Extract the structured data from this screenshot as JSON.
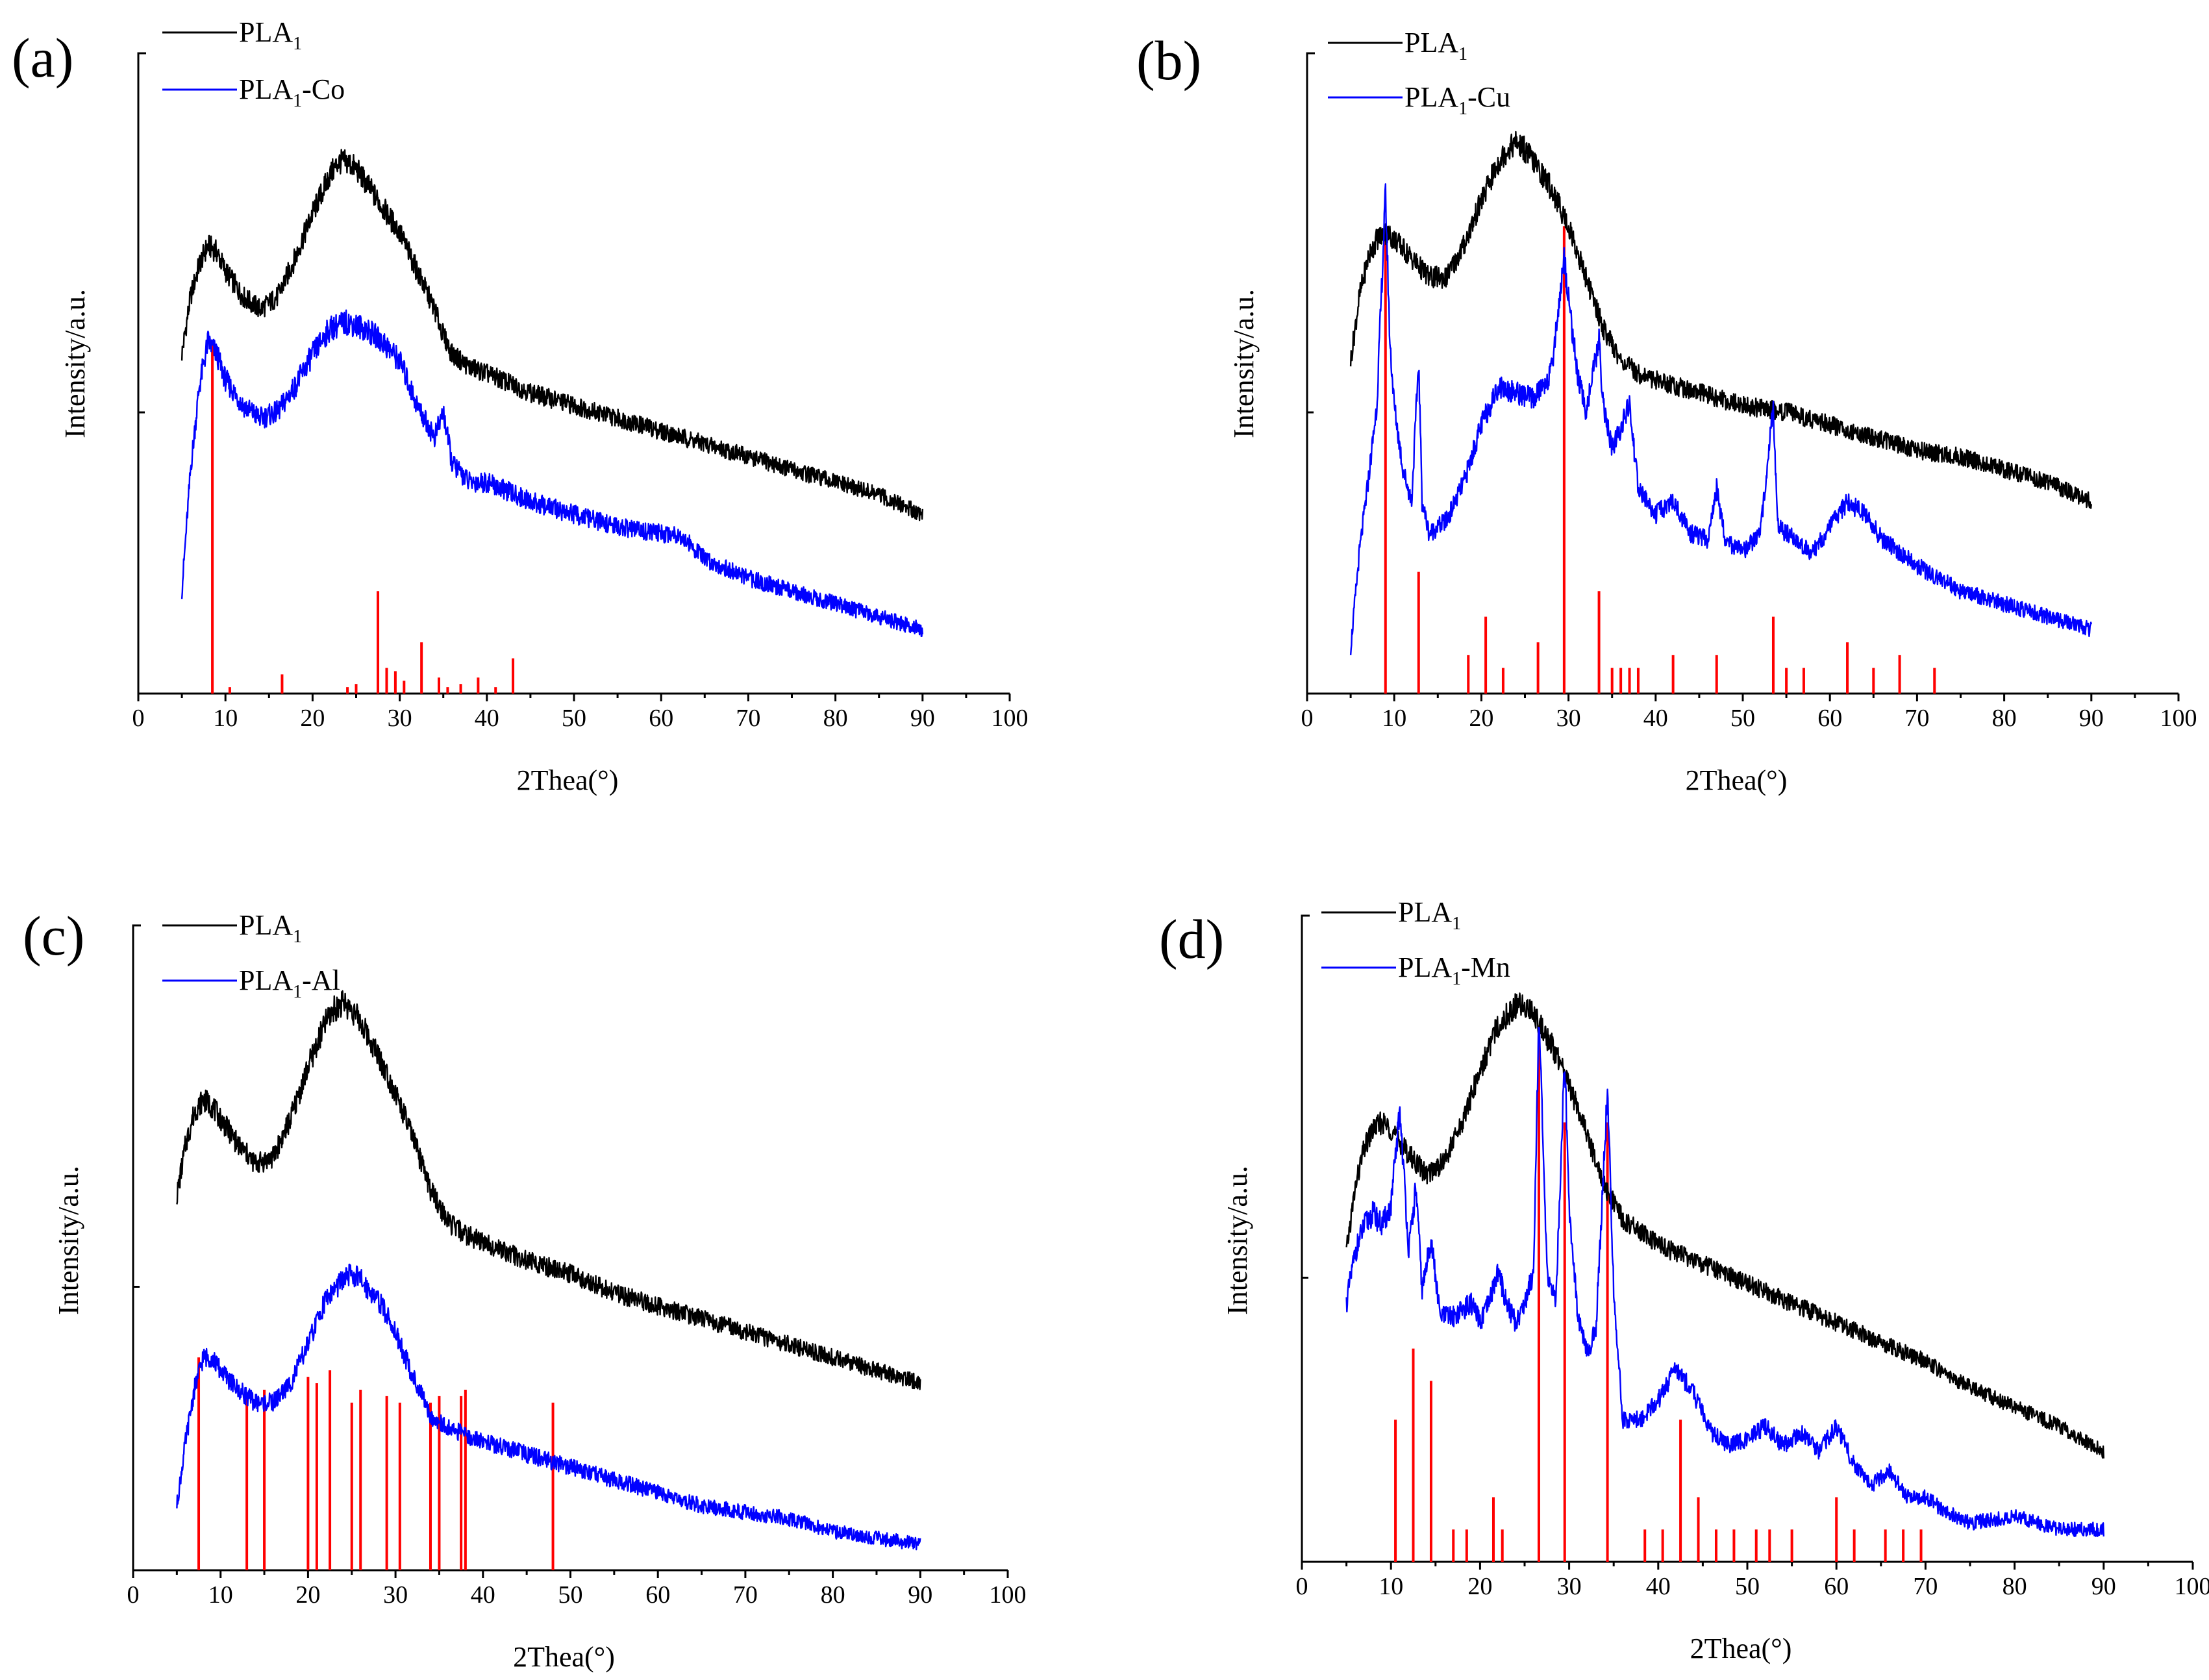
{
  "colors": {
    "pla1": "#000000",
    "composite": "#0000ff",
    "reference": "#ff0000"
  },
  "chart_data": [
    {
      "type": "line",
      "panel_label": "(a)",
      "xlabel": "2Thea(°)",
      "ylabel": "Intensity/a.u.",
      "xlim": [
        0,
        100
      ],
      "xticks": [
        0,
        10,
        20,
        30,
        40,
        50,
        60,
        70,
        80,
        90,
        100
      ],
      "legend": {
        "base": "PLA",
        "sub": "1",
        "composite_suffix": "-Co",
        "placement": "top-left"
      },
      "series": [
        {
          "name": "PLA1",
          "x": [
            5,
            6,
            7,
            8,
            9,
            10,
            12,
            14,
            16,
            18,
            20,
            22,
            23,
            24,
            25,
            26,
            28,
            30,
            32,
            34,
            35,
            36,
            38,
            40,
            45,
            50,
            55,
            60,
            65,
            70,
            75,
            80,
            85,
            90
          ],
          "y": [
            0.53,
            0.62,
            0.67,
            0.7,
            0.69,
            0.66,
            0.62,
            0.6,
            0.62,
            0.68,
            0.75,
            0.81,
            0.83,
            0.83,
            0.82,
            0.8,
            0.76,
            0.72,
            0.66,
            0.6,
            0.56,
            0.53,
            0.51,
            0.5,
            0.47,
            0.45,
            0.43,
            0.41,
            0.39,
            0.37,
            0.35,
            0.33,
            0.31,
            0.28
          ]
        },
        {
          "name": "PLA1-Co",
          "x": [
            5,
            6,
            7,
            8,
            9,
            10,
            12,
            14,
            16,
            18,
            20,
            22,
            24,
            26,
            28,
            30,
            32,
            34,
            35,
            36,
            38,
            40,
            45,
            50,
            55,
            60,
            62,
            65,
            70,
            75,
            80,
            85,
            90
          ],
          "y": [
            0.16,
            0.35,
            0.48,
            0.55,
            0.53,
            0.49,
            0.45,
            0.43,
            0.44,
            0.48,
            0.53,
            0.57,
            0.58,
            0.57,
            0.55,
            0.52,
            0.45,
            0.4,
            0.44,
            0.36,
            0.33,
            0.33,
            0.3,
            0.28,
            0.26,
            0.25,
            0.25,
            0.21,
            0.18,
            0.16,
            0.14,
            0.12,
            0.1
          ]
        }
      ],
      "reference_lines": {
        "x": [
          8.5,
          10.5,
          16.5,
          24.0,
          25.0,
          27.5,
          28.5,
          29.5,
          30.5,
          32.5,
          34.5,
          35.5,
          37.0,
          39.0,
          41.0,
          43.0
        ],
        "h": [
          0.55,
          0.01,
          0.03,
          0.01,
          0.015,
          0.16,
          0.04,
          0.035,
          0.02,
          0.08,
          0.025,
          0.01,
          0.015,
          0.025,
          0.01,
          0.055
        ]
      }
    },
    {
      "type": "line",
      "panel_label": "(b)",
      "xlabel": "2Thea(°)",
      "ylabel": "Intensity/a.u.",
      "xlim": [
        0,
        100
      ],
      "xticks": [
        0,
        10,
        20,
        30,
        40,
        50,
        60,
        70,
        80,
        90,
        100
      ],
      "legend": {
        "base": "PLA",
        "sub": "1",
        "composite_suffix": "-Cu",
        "placement": "top-left"
      },
      "series": [
        {
          "name": "PLA1",
          "x": [
            5,
            6,
            7,
            8,
            9,
            10,
            12,
            14,
            16,
            18,
            20,
            22,
            23,
            24,
            25,
            26,
            28,
            30,
            32,
            34,
            36,
            38,
            40,
            45,
            50,
            55,
            60,
            65,
            70,
            75,
            80,
            85,
            90
          ],
          "y": [
            0.52,
            0.62,
            0.68,
            0.71,
            0.72,
            0.71,
            0.68,
            0.65,
            0.65,
            0.7,
            0.77,
            0.83,
            0.85,
            0.86,
            0.85,
            0.83,
            0.79,
            0.73,
            0.65,
            0.57,
            0.52,
            0.5,
            0.49,
            0.47,
            0.45,
            0.44,
            0.42,
            0.4,
            0.38,
            0.37,
            0.35,
            0.33,
            0.3
          ]
        },
        {
          "name": "PLA1-Cu",
          "x": [
            5,
            6,
            7,
            8,
            9,
            9.5,
            10,
            11,
            12,
            12.8,
            13.2,
            14,
            16,
            18,
            20,
            22,
            24,
            26,
            28,
            29.5,
            30,
            31,
            32,
            33.5,
            34,
            35,
            37,
            38,
            40,
            42,
            44,
            46,
            47,
            48,
            50,
            52,
            53.5,
            54,
            56,
            58,
            60,
            62,
            64,
            66,
            68,
            70,
            75,
            80,
            85,
            90
          ],
          "y": [
            0.07,
            0.22,
            0.33,
            0.45,
            0.78,
            0.55,
            0.45,
            0.35,
            0.3,
            0.52,
            0.3,
            0.25,
            0.27,
            0.33,
            0.42,
            0.48,
            0.47,
            0.46,
            0.5,
            0.68,
            0.62,
            0.5,
            0.44,
            0.55,
            0.45,
            0.38,
            0.45,
            0.32,
            0.28,
            0.3,
            0.25,
            0.24,
            0.32,
            0.24,
            0.22,
            0.25,
            0.45,
            0.26,
            0.24,
            0.22,
            0.26,
            0.3,
            0.28,
            0.24,
            0.22,
            0.2,
            0.16,
            0.14,
            0.12,
            0.1
          ]
        }
      ],
      "reference_lines": {
        "x": [
          9.0,
          12.8,
          18.5,
          20.5,
          22.5,
          26.5,
          29.5,
          33.5,
          35.0,
          36.0,
          37.0,
          38.0,
          42.0,
          47.0,
          53.5,
          55.0,
          57.0,
          62.0,
          65.0,
          68.0,
          72.0
        ],
        "h": [
          0.73,
          0.19,
          0.06,
          0.12,
          0.04,
          0.08,
          0.73,
          0.16,
          0.04,
          0.04,
          0.04,
          0.04,
          0.06,
          0.06,
          0.12,
          0.04,
          0.04,
          0.08,
          0.04,
          0.06,
          0.04
        ]
      }
    },
    {
      "type": "line",
      "panel_label": "(c)",
      "xlabel": "2Thea(°)",
      "ylabel": "Intensity/a.u.",
      "xlim": [
        0,
        100
      ],
      "xticks": [
        0,
        10,
        20,
        30,
        40,
        50,
        60,
        70,
        80,
        90,
        100
      ],
      "legend": {
        "base": "PLA",
        "sub": "1",
        "composite_suffix": "-Al",
        "placement": "top-left"
      },
      "series": [
        {
          "name": "PLA1",
          "x": [
            5,
            6,
            7,
            8,
            9,
            10,
            12,
            14,
            16,
            18,
            20,
            22,
            23,
            24,
            25,
            26,
            28,
            30,
            32,
            34,
            36,
            38,
            40,
            45,
            50,
            55,
            60,
            65,
            70,
            75,
            80,
            85,
            90
          ],
          "y": [
            0.58,
            0.66,
            0.71,
            0.73,
            0.72,
            0.7,
            0.66,
            0.63,
            0.64,
            0.7,
            0.78,
            0.85,
            0.87,
            0.88,
            0.87,
            0.85,
            0.8,
            0.74,
            0.67,
            0.59,
            0.54,
            0.52,
            0.51,
            0.48,
            0.46,
            0.43,
            0.41,
            0.39,
            0.37,
            0.35,
            0.33,
            0.31,
            0.29
          ]
        },
        {
          "name": "PLA1-Al",
          "x": [
            5,
            6,
            7,
            8,
            9,
            10,
            12,
            14,
            16,
            18,
            20,
            22,
            24,
            25,
            26,
            28,
            30,
            32,
            34,
            36,
            38,
            40,
            45,
            50,
            55,
            60,
            65,
            70,
            75,
            80,
            85,
            90
          ],
          "y": [
            0.1,
            0.2,
            0.28,
            0.33,
            0.33,
            0.31,
            0.28,
            0.26,
            0.26,
            0.29,
            0.35,
            0.42,
            0.45,
            0.46,
            0.45,
            0.42,
            0.37,
            0.3,
            0.24,
            0.22,
            0.21,
            0.2,
            0.18,
            0.16,
            0.14,
            0.12,
            0.1,
            0.09,
            0.08,
            0.06,
            0.05,
            0.04
          ]
        }
      ],
      "reference_lines": {
        "x": [
          7.5,
          13.0,
          15.0,
          20.0,
          21.0,
          22.5,
          25.0,
          26.0,
          29.0,
          30.5,
          34.0,
          35.0,
          37.5,
          38.0,
          48.0
        ],
        "h": [
          0.33,
          0.27,
          0.28,
          0.3,
          0.29,
          0.31,
          0.26,
          0.28,
          0.27,
          0.26,
          0.26,
          0.27,
          0.27,
          0.28,
          0.26
        ]
      }
    },
    {
      "type": "line",
      "panel_label": "(d)",
      "xlabel": "2Thea(°)",
      "ylabel": "Intensity/a.u.",
      "xlim": [
        0,
        100
      ],
      "xticks": [
        0,
        10,
        20,
        30,
        40,
        50,
        60,
        70,
        80,
        90,
        100
      ],
      "legend": {
        "base": "PLA",
        "sub": "1",
        "composite_suffix": "-Mn",
        "placement": "top-left"
      },
      "series": [
        {
          "name": "PLA1",
          "x": [
            5,
            6,
            7,
            8,
            9,
            10,
            12,
            14,
            16,
            18,
            20,
            22,
            24,
            25,
            26,
            28,
            30,
            32,
            34,
            36,
            38,
            40,
            45,
            50,
            55,
            60,
            65,
            70,
            75,
            80,
            85,
            90
          ],
          "y": [
            0.48,
            0.58,
            0.64,
            0.67,
            0.68,
            0.67,
            0.63,
            0.6,
            0.62,
            0.68,
            0.76,
            0.83,
            0.86,
            0.86,
            0.85,
            0.8,
            0.74,
            0.66,
            0.58,
            0.53,
            0.51,
            0.49,
            0.46,
            0.43,
            0.4,
            0.37,
            0.34,
            0.31,
            0.27,
            0.24,
            0.21,
            0.17
          ]
        },
        {
          "name": "PLA1-Mn",
          "x": [
            5,
            6,
            7,
            8,
            9,
            10,
            11,
            12,
            12.8,
            13.5,
            14.5,
            15.5,
            17,
            19,
            20,
            21,
            22,
            23,
            24,
            25,
            26,
            26.6,
            27.5,
            28.5,
            29.5,
            30,
            31,
            32,
            33,
            34.3,
            35,
            36,
            38,
            40,
            42,
            44,
            46,
            48,
            50,
            52,
            54,
            56,
            58,
            60,
            62,
            64,
            66,
            68,
            70,
            72,
            75,
            80,
            85,
            90
          ],
          "y": [
            0.4,
            0.48,
            0.52,
            0.54,
            0.52,
            0.55,
            0.7,
            0.48,
            0.58,
            0.42,
            0.5,
            0.38,
            0.38,
            0.4,
            0.37,
            0.4,
            0.45,
            0.4,
            0.37,
            0.4,
            0.45,
            0.85,
            0.45,
            0.4,
            0.78,
            0.55,
            0.38,
            0.32,
            0.36,
            0.73,
            0.42,
            0.22,
            0.22,
            0.25,
            0.3,
            0.26,
            0.2,
            0.18,
            0.19,
            0.21,
            0.18,
            0.2,
            0.17,
            0.21,
            0.15,
            0.12,
            0.14,
            0.1,
            0.1,
            0.08,
            0.06,
            0.07,
            0.05,
            0.05
          ]
        }
      ],
      "reference_lines": {
        "x": [
          10.5,
          12.5,
          14.5,
          17.0,
          18.5,
          21.5,
          22.5,
          26.6,
          29.5,
          34.3,
          38.5,
          40.5,
          42.5,
          44.5,
          46.5,
          48.5,
          51.0,
          52.5,
          55.0,
          60.0,
          62.0,
          65.5,
          67.5,
          69.5
        ],
        "h": [
          0.22,
          0.33,
          0.28,
          0.05,
          0.05,
          0.1,
          0.05,
          0.83,
          0.68,
          0.68,
          0.05,
          0.05,
          0.22,
          0.1,
          0.05,
          0.05,
          0.05,
          0.05,
          0.05,
          0.1,
          0.05,
          0.05,
          0.05,
          0.05
        ]
      }
    }
  ]
}
